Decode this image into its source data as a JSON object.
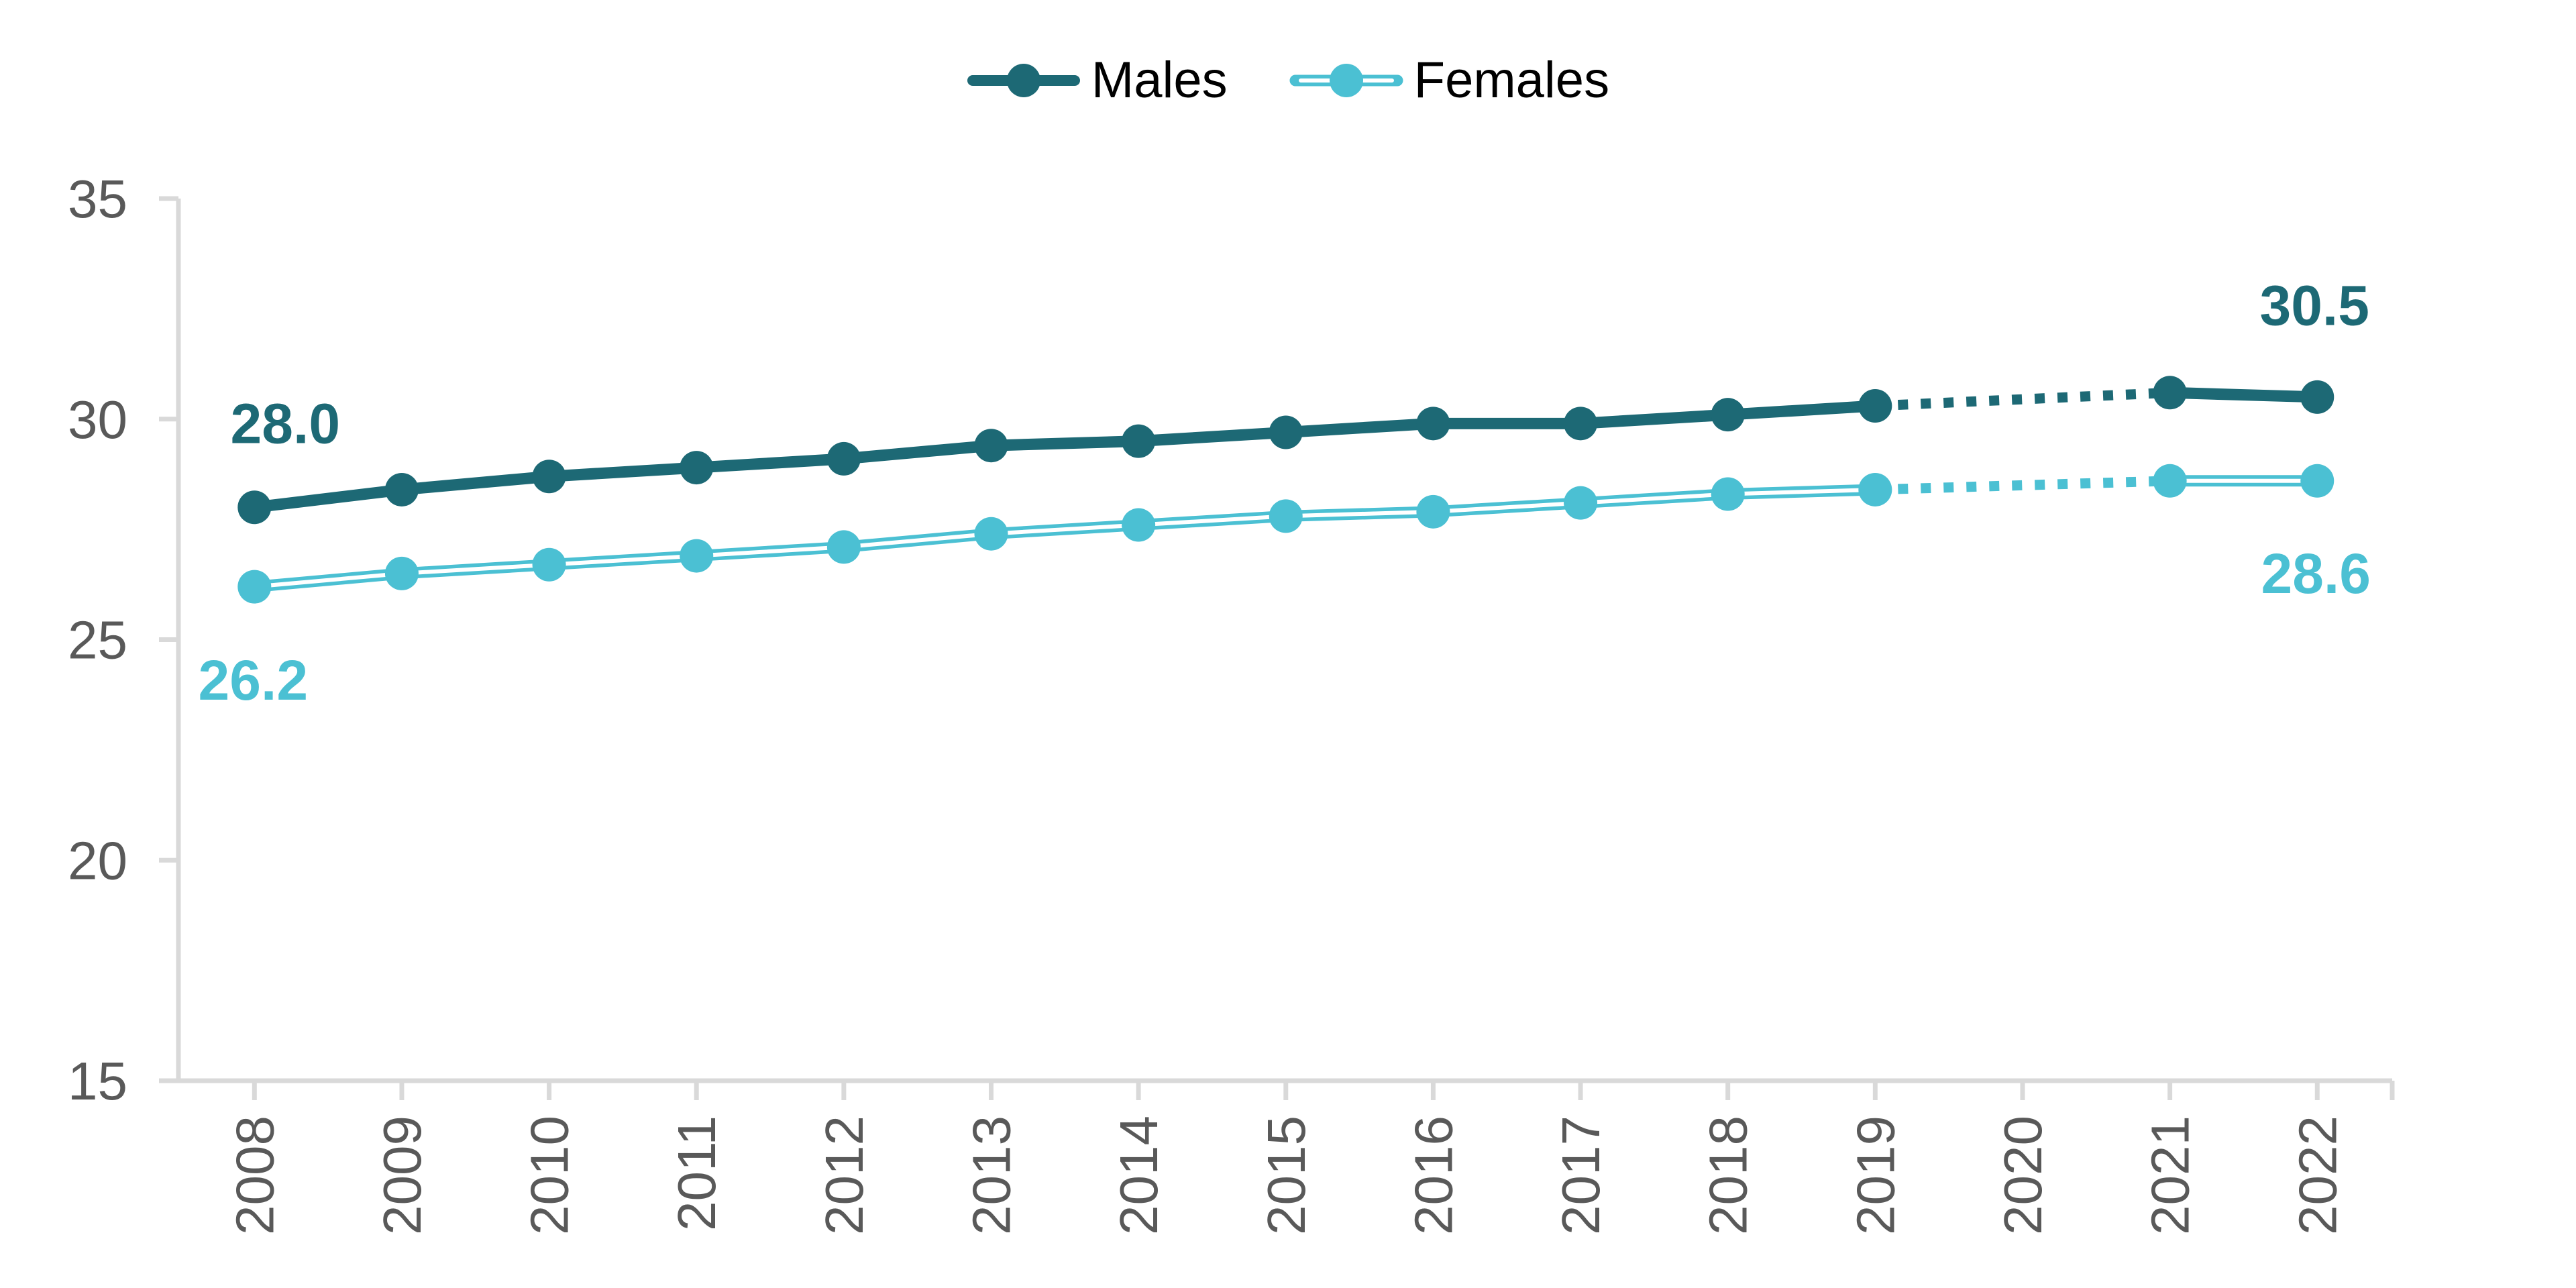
{
  "legend": {
    "items": [
      {
        "label": "Males",
        "color": "#1D6975",
        "line_style": "solid"
      },
      {
        "label": "Females",
        "color": "#4BC0D3",
        "line_style": "double"
      }
    ]
  },
  "chart_data": {
    "type": "line",
    "title": "",
    "xlabel": "",
    "ylabel": "",
    "x": [
      2008,
      2009,
      2010,
      2011,
      2012,
      2013,
      2014,
      2015,
      2016,
      2017,
      2018,
      2019,
      2020,
      2021,
      2022
    ],
    "series": [
      {
        "name": "Males",
        "color": "#1D6975",
        "line_style": "solid",
        "values": [
          28.0,
          28.4,
          28.7,
          28.9,
          29.1,
          29.4,
          29.5,
          29.7,
          29.9,
          29.9,
          30.1,
          30.3,
          null,
          30.6,
          30.5
        ]
      },
      {
        "name": "Females",
        "color": "#4BC0D3",
        "line_style": "double",
        "values": [
          26.2,
          26.5,
          26.7,
          26.9,
          27.1,
          27.4,
          27.6,
          27.8,
          27.9,
          28.1,
          28.3,
          28.4,
          null,
          28.6,
          28.6
        ]
      }
    ],
    "dashed_gap": {
      "from_x": 2019,
      "to_x": 2021
    },
    "ylim": [
      15,
      35
    ],
    "yticks": [
      15,
      20,
      25,
      30,
      35
    ],
    "grid": false,
    "legend_position": "top-center",
    "annotations": [
      {
        "text": "28.0",
        "series": "Males",
        "x": 2008,
        "value": 28.0,
        "placement": "above-start"
      },
      {
        "text": "26.2",
        "series": "Females",
        "x": 2008,
        "value": 26.2,
        "placement": "below-start"
      },
      {
        "text": "30.5",
        "series": "Males",
        "x": 2022,
        "value": 30.5,
        "placement": "above-end"
      },
      {
        "text": "28.6",
        "series": "Females",
        "x": 2022,
        "value": 28.6,
        "placement": "below-end"
      }
    ],
    "axis_color": "#D9D9D9",
    "tick_label_color": "#595959"
  }
}
